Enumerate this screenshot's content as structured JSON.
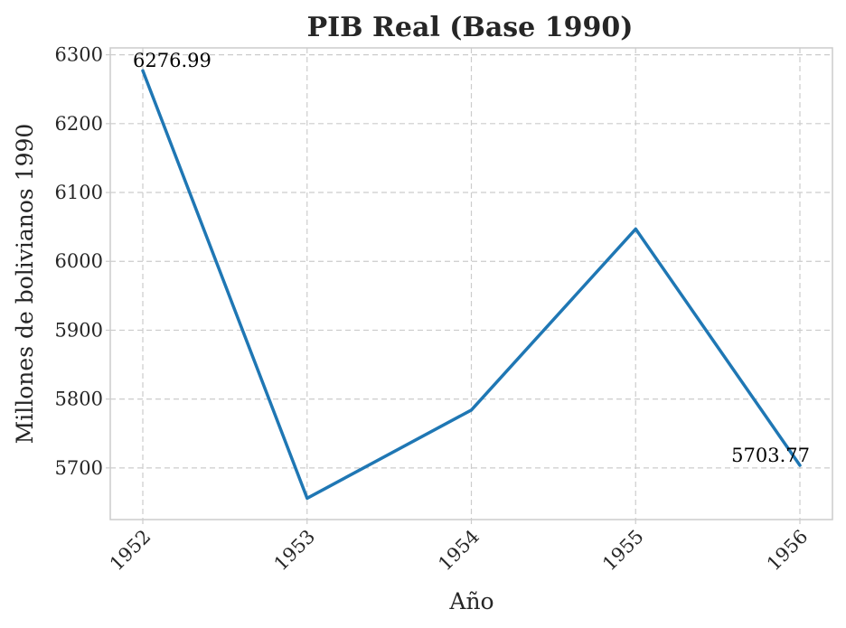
{
  "chart_data": {
    "type": "line",
    "title": "PIB Real (Base 1990)",
    "xlabel": "Año",
    "ylabel": "Millones de bolivianos 1990",
    "x": [
      "1952",
      "1953",
      "1954",
      "1955",
      "1956"
    ],
    "series": [
      {
        "values": [
          6276.99,
          5656,
          5784,
          6047,
          5703.77
        ],
        "color": "#1f77b4"
      }
    ],
    "annotations": [
      {
        "x": "1952",
        "y": 6276.99,
        "text": "6276.99"
      },
      {
        "x": "1956",
        "y": 5703.77,
        "text": "5703.77"
      }
    ],
    "yticks": [
      "5700",
      "5800",
      "5900",
      "6000",
      "6100",
      "6200",
      "6300"
    ],
    "xticks": [
      "1952",
      "1953",
      "1954",
      "1955",
      "1956"
    ],
    "ylim": [
      5625,
      6310
    ],
    "grid": true,
    "xtick_rotation": -45
  }
}
